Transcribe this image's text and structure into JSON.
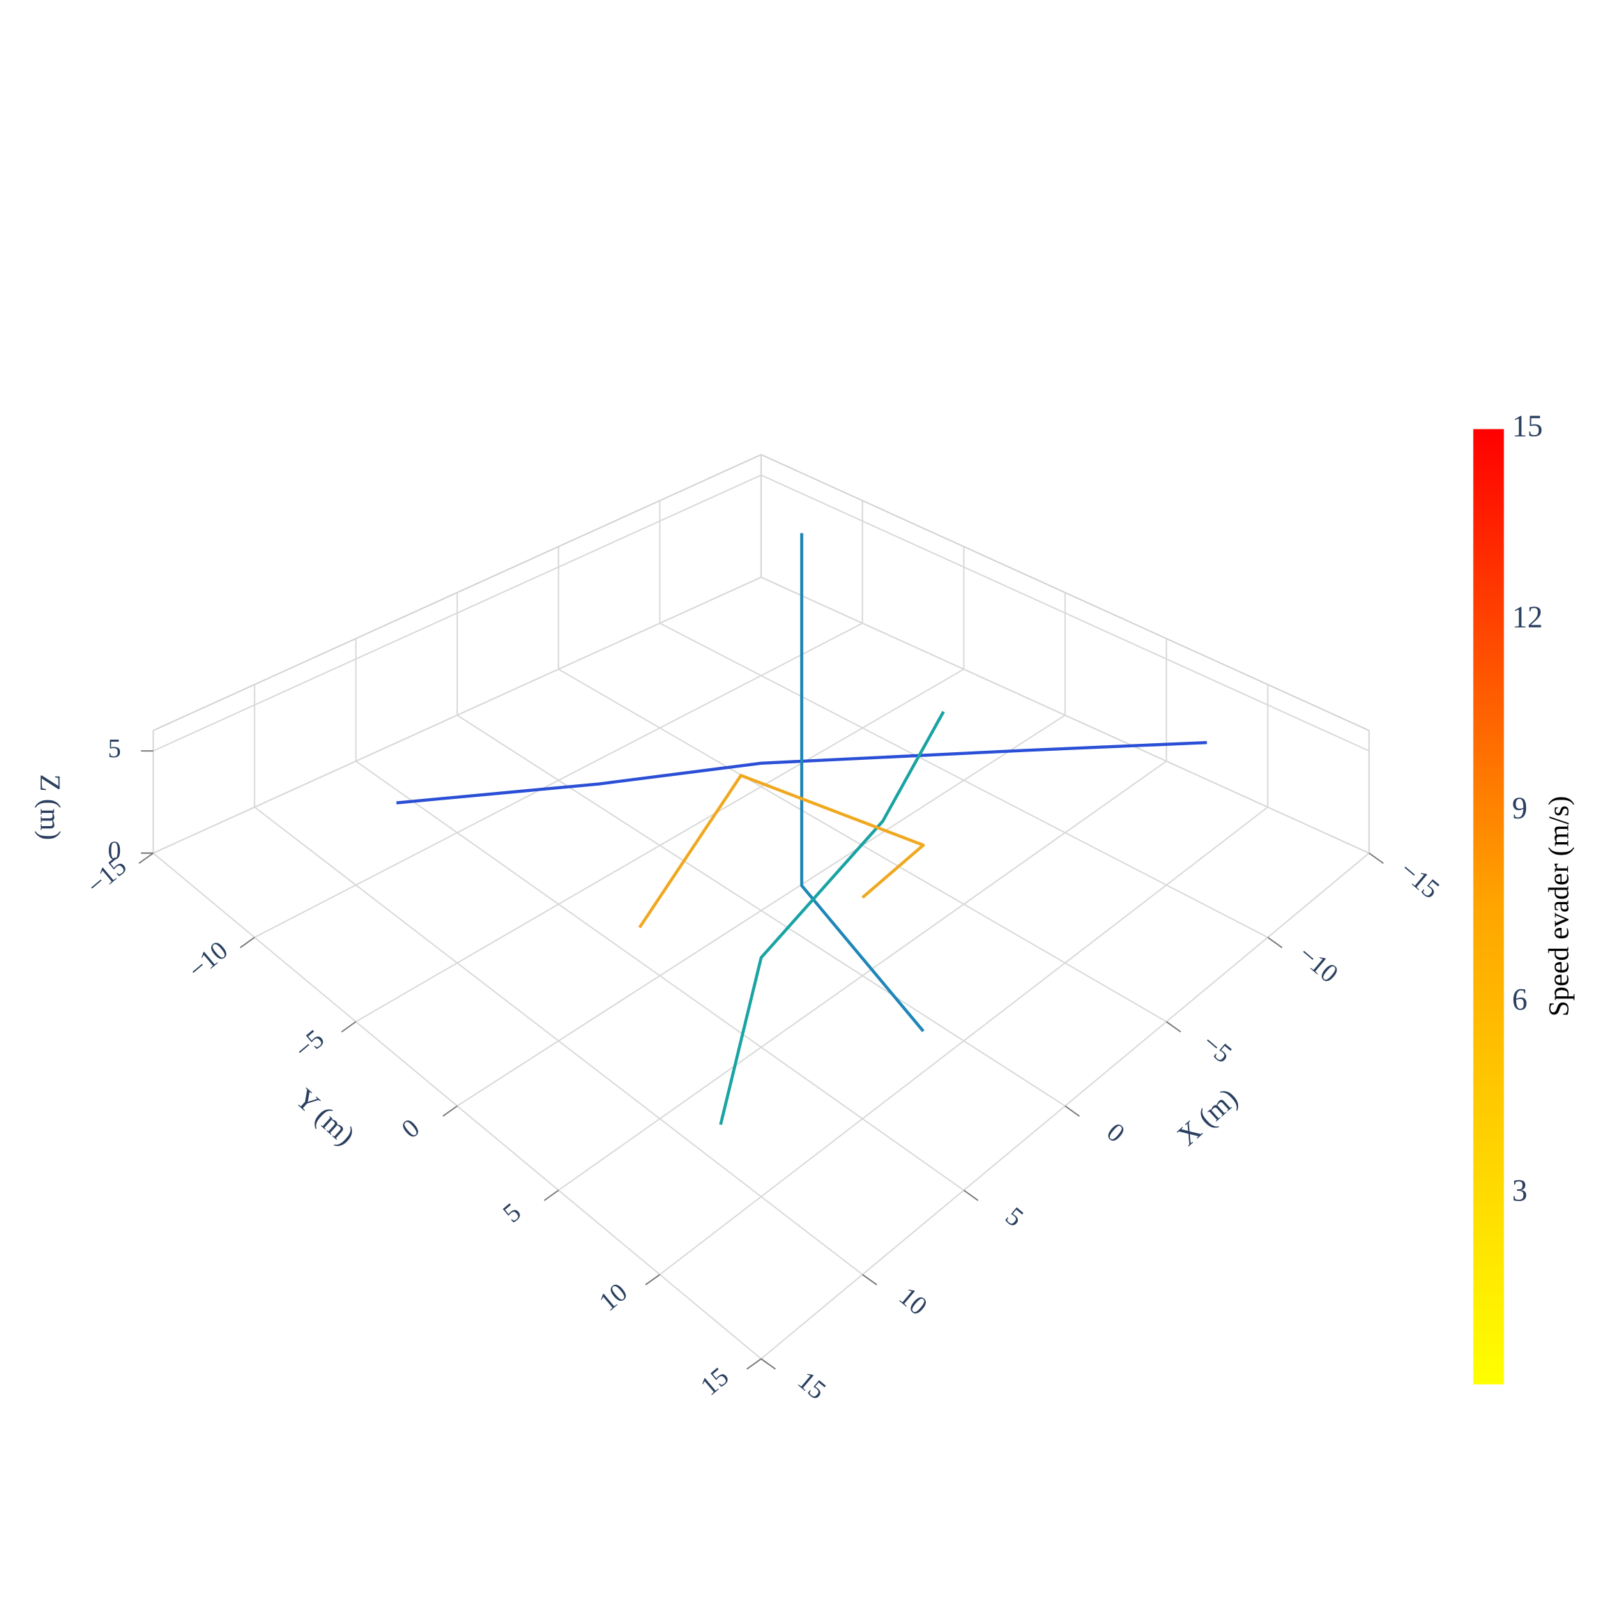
{
  "chart_data": {
    "type": "line3d",
    "xlim": [
      -15,
      15
    ],
    "ylim": [
      -15,
      15
    ],
    "zlim": [
      0,
      6
    ],
    "xticks": [
      {
        "value": -15,
        "label": "−15"
      },
      {
        "value": -10,
        "label": "−10"
      },
      {
        "value": -5,
        "label": "−5"
      },
      0,
      5,
      10,
      15
    ],
    "yticks": [
      {
        "value": -15,
        "label": "−15"
      },
      {
        "value": -10,
        "label": "−10"
      },
      {
        "value": -5,
        "label": "−5"
      },
      0,
      5,
      10,
      15
    ],
    "zticks": [
      0,
      5
    ],
    "x_label": "X (m)",
    "y_label": "Y (m)",
    "z_label": "Z (m)",
    "grid": true,
    "series": [
      {
        "color": "#2a4fd6",
        "x": [
          8,
          2,
          -3,
          -10,
          -14
        ],
        "y": [
          -10,
          -6,
          -3,
          3,
          8
        ],
        "z": [
          3,
          3.5,
          3.5,
          3,
          3
        ]
      },
      {
        "color": "#1f86b8",
        "x": [
          -14,
          -6,
          0,
          2
        ],
        "y": [
          -12,
          -4,
          2,
          10
        ],
        "z": [
          4,
          3,
          2.5,
          2
        ]
      },
      {
        "color": "#1aa3a3",
        "x": [
          10,
          4,
          -4,
          -9
        ],
        "y": [
          8,
          4,
          2,
          0
        ],
        "z": [
          2,
          3,
          3,
          4
        ]
      },
      {
        "color": "#f0a820",
        "x": [
          6,
          -2,
          -4,
          -1
        ],
        "y": [
          0,
          -3,
          4,
          4
        ],
        "z": [
          3,
          3.5,
          3,
          2.5
        ]
      }
    ],
    "colorbar": {
      "title": "Speed evader (m/s)",
      "clim": [
        0,
        15
      ],
      "ticks": [
        3,
        6,
        9,
        12,
        15
      ],
      "colorscale": [
        "#ffff00",
        "#ffa500",
        "#ff0000"
      ]
    }
  }
}
